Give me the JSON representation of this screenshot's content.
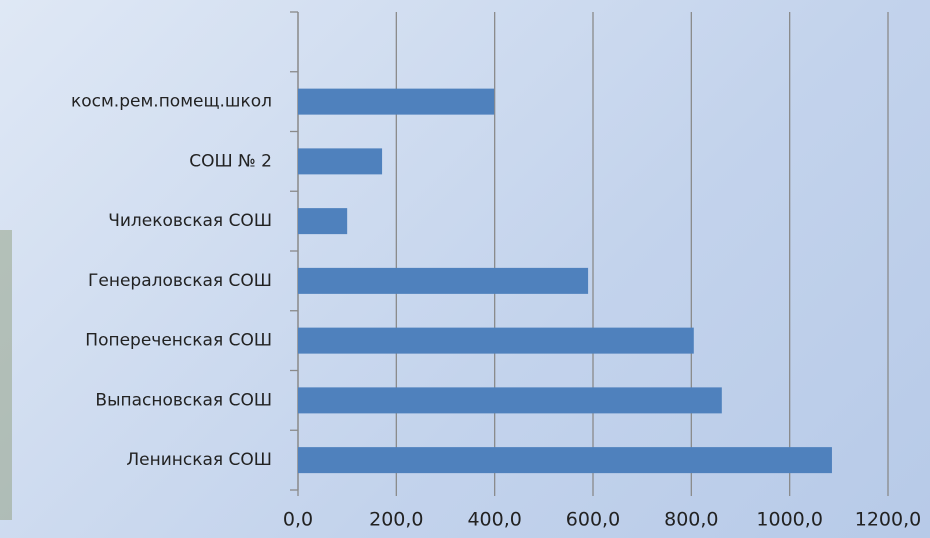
{
  "chart_data": {
    "type": "barh",
    "categories": [
      "Ленинская СОШ",
      "Выпасновская СОШ",
      "Попереченская СОШ",
      "Генераловская СОШ",
      "Чилековская СОШ",
      "СОШ № 2",
      "косм.рем.помещ.школ",
      null
    ],
    "values": [
      1086,
      862,
      805,
      590,
      100,
      171,
      399,
      null
    ],
    "color": "#4f81bd",
    "xlim": [
      0,
      1200
    ],
    "xticks": [
      {
        "value": 0,
        "label": "0,0"
      },
      {
        "value": 200,
        "label": "200,0"
      },
      {
        "value": 400,
        "label": "400,0"
      },
      {
        "value": 600,
        "label": "600,0"
      },
      {
        "value": 800,
        "label": "800,0"
      },
      {
        "value": 1000,
        "label": "1000,0"
      },
      {
        "value": 1200,
        "label": "1200,0"
      }
    ],
    "grid": true
  }
}
